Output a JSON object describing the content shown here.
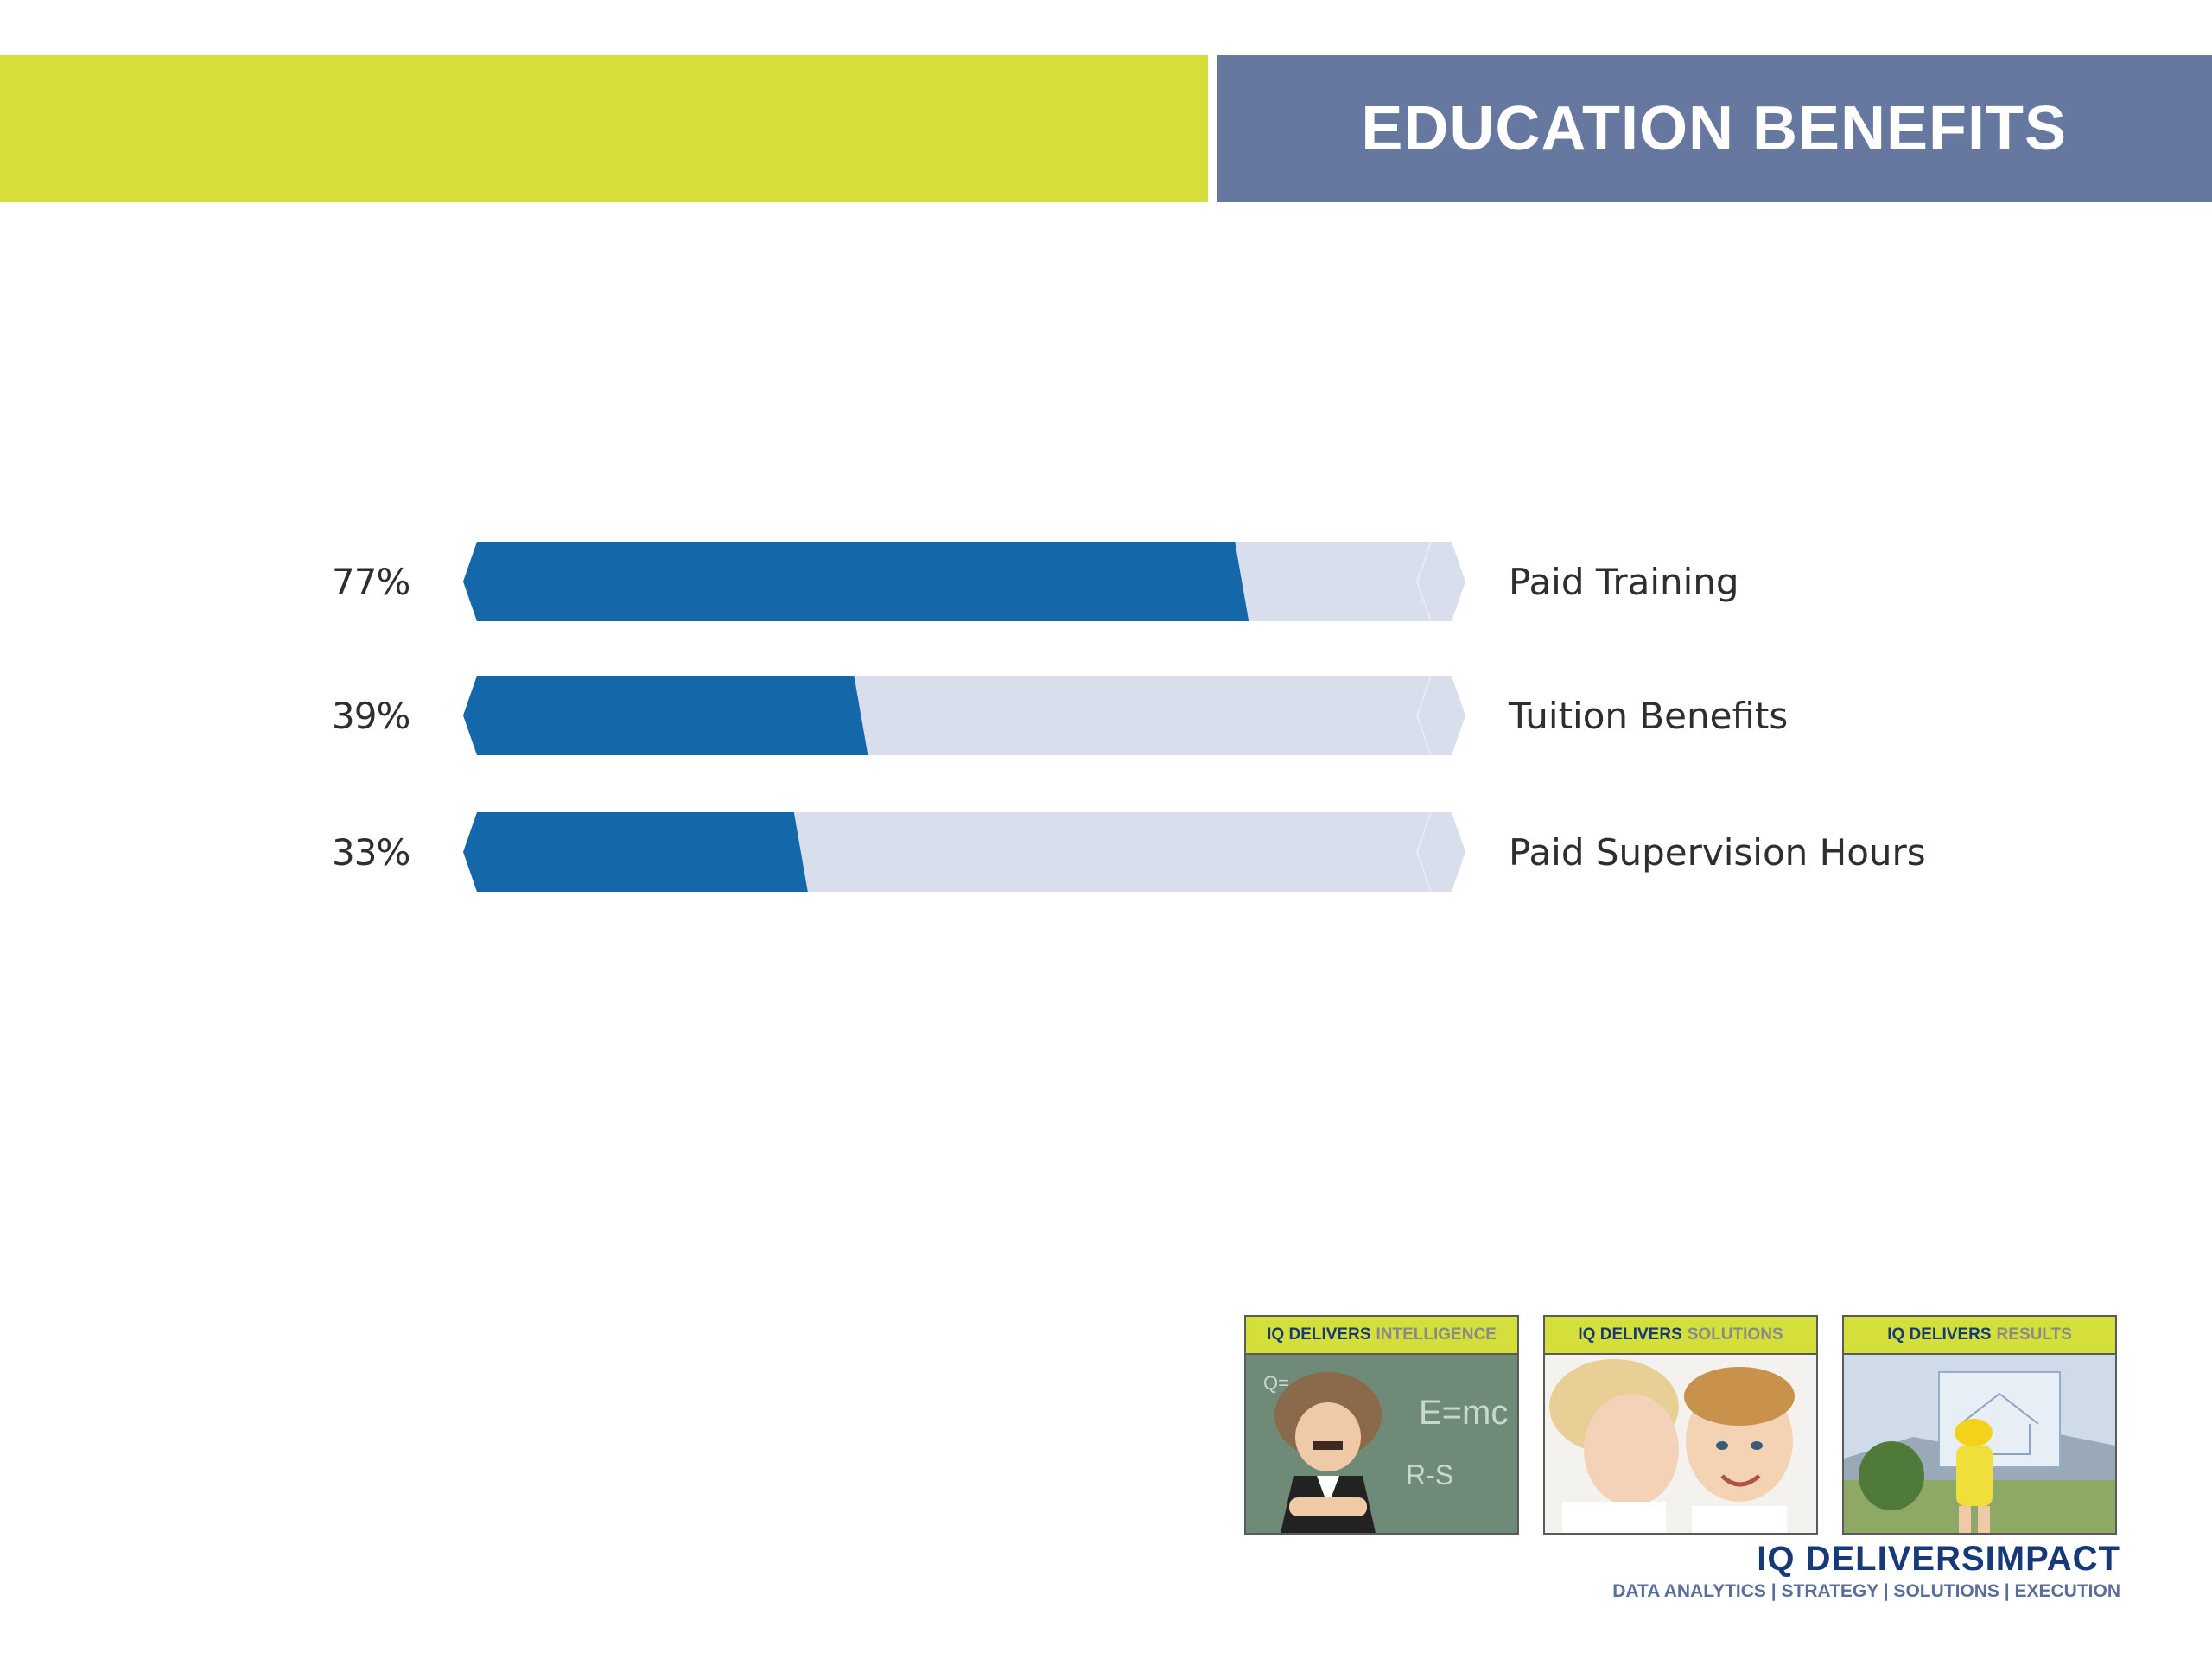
{
  "header": {
    "title": "EDUCATION BENEFITS"
  },
  "colors": {
    "accent_green": "#d4df3c",
    "header_slate": "#6678a0",
    "bar_fill": "#1467a9",
    "bar_track": "#d9deed"
  },
  "chart_data": {
    "type": "bar",
    "orientation": "horizontal",
    "categories": [
      "Paid Training",
      "Tuition Benefits",
      "Paid Supervision Hours"
    ],
    "values": [
      77,
      39,
      33
    ],
    "value_labels": [
      "77%",
      "39%",
      "33%"
    ],
    "xlim": [
      0,
      100
    ],
    "title": "",
    "xlabel": "",
    "ylabel": ""
  },
  "tiles": [
    {
      "prefix": "IQ DELIVERS",
      "suffix": "INTELLIGENCE",
      "image": "child-scientist-chalkboard-photo"
    },
    {
      "prefix": "IQ DELIVERS",
      "suffix": "SOLUTIONS",
      "image": "children-whispering-photo"
    },
    {
      "prefix": "IQ DELIVERS",
      "suffix": "RESULTS",
      "image": "child-hardhat-blueprint-photo"
    }
  ],
  "footer": {
    "brand_prefix": "IQ DELIVERS",
    "brand_accent": "IMPACT",
    "tagline": "DATA ANALYTICS | STRATEGY | SOLUTIONS | EXECUTION"
  }
}
